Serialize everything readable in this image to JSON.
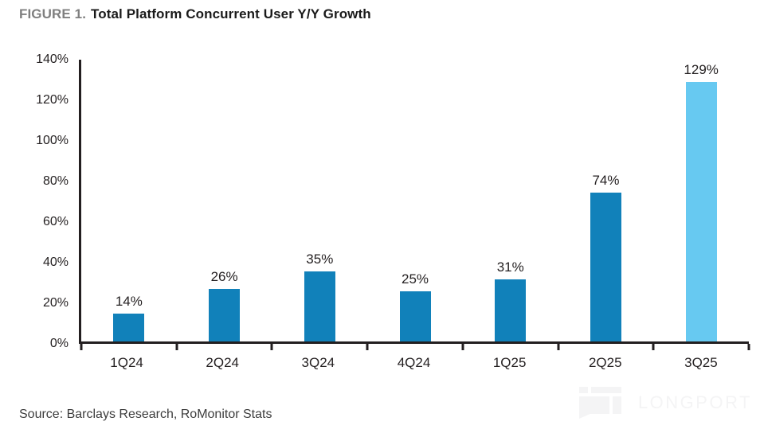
{
  "header": {
    "figure_label": "FIGURE 1.",
    "title": "Total Platform Concurrent User Y/Y Growth"
  },
  "chart_data": {
    "type": "bar",
    "categories": [
      "1Q24",
      "2Q24",
      "3Q24",
      "4Q24",
      "1Q25",
      "2Q25",
      "3Q25"
    ],
    "values": [
      14,
      26,
      35,
      25,
      31,
      74,
      129
    ],
    "value_labels": [
      "14%",
      "26%",
      "35%",
      "25%",
      "31%",
      "74%",
      "129%"
    ],
    "title": "Total Platform Concurrent User Y/Y Growth",
    "xlabel": "",
    "ylabel": "",
    "ylim": [
      0,
      140
    ],
    "ytick_step": 20,
    "ytick_labels": [
      "0%",
      "20%",
      "40%",
      "60%",
      "80%",
      "100%",
      "120%",
      "140%"
    ],
    "grid": false,
    "legend": "none",
    "bar_color": "#1181BA",
    "highlight_color": "#67C9F1",
    "highlight_index": 6,
    "axis_color": "#231f20"
  },
  "footer": {
    "source": "Source: Barclays Research, RoMonitor Stats"
  },
  "watermark": {
    "brand": "LONGPORT",
    "color": "#f4f4f5"
  }
}
